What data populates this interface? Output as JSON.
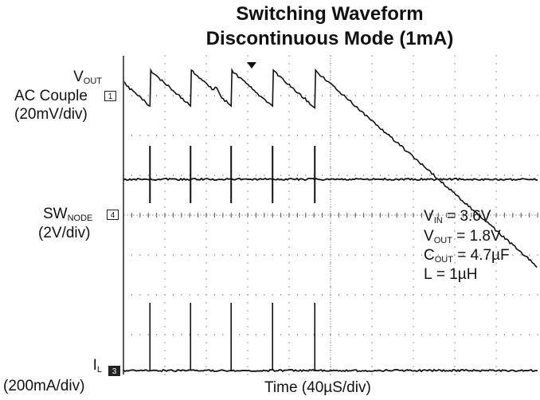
{
  "chart_data": {
    "type": "line",
    "title": "Switching Waveform",
    "subtitle": "Discontinuous Mode (1mA)",
    "xlabel": "Time (40µS/div)",
    "grid": true,
    "x_divisions": 10,
    "y_divisions": 8,
    "series": [
      {
        "name": "VOUT",
        "coupling": "AC Couple",
        "scale": "(20mV/div)",
        "marker": "1",
        "waveform": "sawtooth",
        "pulse_times_div": [
          0.64,
          1.62,
          2.6,
          3.6,
          4.62
        ],
        "peak_to_peak_div": 0.9
      },
      {
        "name": "SWNODE",
        "scale": "(2V/div)",
        "marker": "4",
        "waveform": "spikes",
        "pulse_times_div": [
          0.64,
          1.62,
          2.6,
          3.6,
          4.62
        ]
      },
      {
        "name": "IL",
        "scale": "(200mA/div)",
        "marker": "3",
        "waveform": "spikes",
        "pulse_times_div": [
          0.64,
          1.62,
          2.6,
          3.6,
          4.62
        ]
      }
    ],
    "annotations": [
      {
        "symbol": "V",
        "sub": "IN",
        "text": " = 3.6V"
      },
      {
        "symbol": "V",
        "sub": "OUT",
        "text": " = 1.8V"
      },
      {
        "symbol": "C",
        "sub": "OUT",
        "text": " = 4.7µF"
      },
      {
        "symbol": "L",
        "sub": "",
        "text": " = 1µH"
      }
    ]
  },
  "labels": {
    "vout_symbol": "V",
    "vout_sub": "OUT",
    "vout_coupling": "AC Couple",
    "vout_scale": "(20mV/div)",
    "sw_symbol": "SW",
    "sw_sub": "NODE",
    "sw_scale": "(2V/div)",
    "il_symbol": "I",
    "il_sub": "L",
    "il_scale": "(200mA/div)",
    "marker1": "1",
    "marker4": "4",
    "marker3": "3"
  }
}
